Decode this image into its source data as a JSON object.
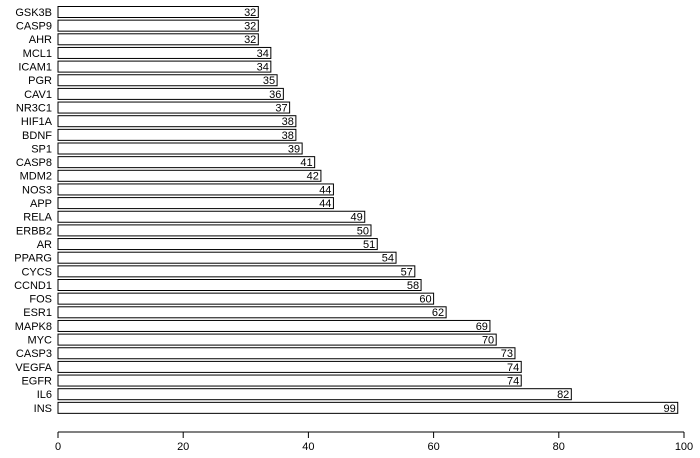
{
  "chart_data": {
    "type": "bar",
    "orientation": "horizontal",
    "categories": [
      "GSK3B",
      "CASP9",
      "AHR",
      "MCL1",
      "ICAM1",
      "PGR",
      "CAV1",
      "NR3C1",
      "HIF1A",
      "BDNF",
      "SP1",
      "CASP8",
      "MDM2",
      "NOS3",
      "APP",
      "RELA",
      "ERBB2",
      "AR",
      "PPARG",
      "CYCS",
      "CCND1",
      "FOS",
      "ESR1",
      "MAPK8",
      "MYC",
      "CASP3",
      "VEGFA",
      "EGFR",
      "IL6",
      "INS"
    ],
    "values": [
      32,
      32,
      32,
      34,
      34,
      35,
      36,
      37,
      38,
      38,
      39,
      41,
      42,
      44,
      44,
      49,
      50,
      51,
      54,
      57,
      58,
      60,
      62,
      69,
      70,
      73,
      74,
      74,
      82,
      99
    ],
    "color": "#ffffff",
    "edgecolor": "#000000",
    "xlim": [
      0,
      100
    ],
    "xticks": [
      0,
      20,
      40,
      60,
      80,
      100
    ]
  }
}
